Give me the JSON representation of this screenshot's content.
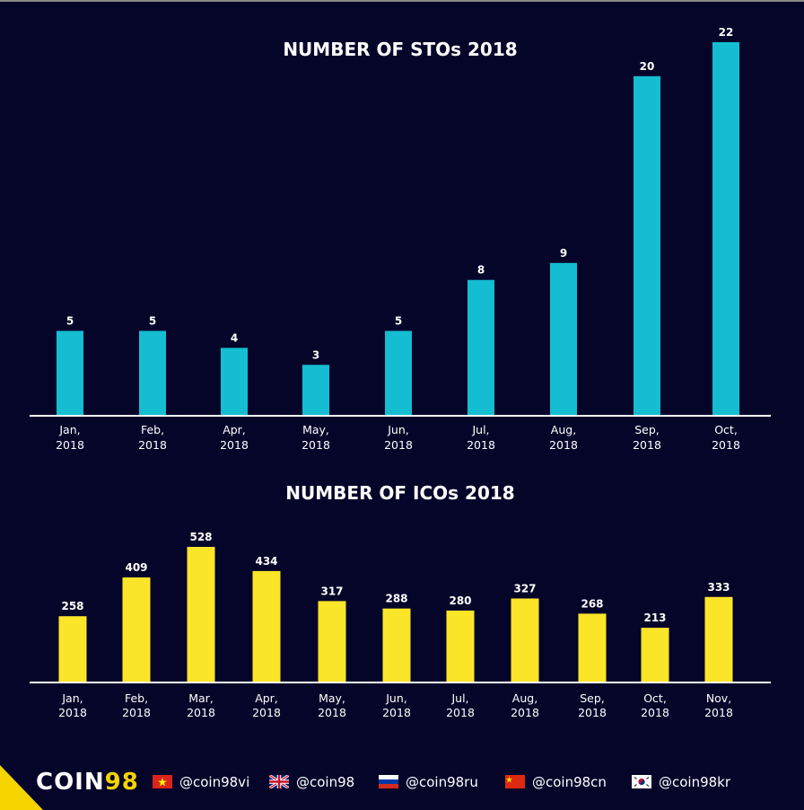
{
  "chart_data": [
    {
      "type": "bar",
      "title": "NUMBER OF STOs 2018",
      "categories": [
        [
          "Jan,",
          "2018"
        ],
        [
          "Feb,",
          "2018"
        ],
        [
          "Apr,",
          "2018"
        ],
        [
          "May,",
          "2018"
        ],
        [
          "Jun,",
          "2018"
        ],
        [
          "Jul,",
          "2018"
        ],
        [
          "Aug,",
          "2018"
        ],
        [
          "Sep,",
          "2018"
        ],
        [
          "Oct,",
          "2018"
        ]
      ],
      "values": [
        5,
        5,
        4,
        3,
        5,
        8,
        9,
        20,
        22
      ],
      "color": "#14bdd1",
      "grid": false
    },
    {
      "type": "bar",
      "title": "NUMBER OF ICOs 2018",
      "categories": [
        [
          "Jan,",
          "2018"
        ],
        [
          "Feb,",
          "2018"
        ],
        [
          "Mar,",
          "2018"
        ],
        [
          "Apr,",
          "2018"
        ],
        [
          "May,",
          "2018"
        ],
        [
          "Jun,",
          "2018"
        ],
        [
          "Jul,",
          "2018"
        ],
        [
          "Aug,",
          "2018"
        ],
        [
          "Sep,",
          "2018"
        ],
        [
          "Oct,",
          "2018"
        ],
        [
          "Nov,",
          "2018"
        ]
      ],
      "values": [
        258,
        409,
        528,
        434,
        317,
        288,
        280,
        327,
        268,
        213,
        333
      ],
      "color": "#fbe529",
      "grid": false
    }
  ],
  "colors": {
    "background": "#05052a",
    "accent": "#f5d400",
    "axis": "#ffffff"
  },
  "footer": {
    "logo": {
      "part1": "COIN",
      "part2": "98"
    },
    "socials": [
      {
        "flag": "vietnam-flag",
        "handle": "@coin98vi"
      },
      {
        "flag": "uk-flag",
        "handle": "@coin98"
      },
      {
        "flag": "russia-flag",
        "handle": "@coin98ru"
      },
      {
        "flag": "china-flag",
        "handle": "@coin98cn"
      },
      {
        "flag": "korea-flag",
        "handle": "@coin98kr"
      }
    ]
  }
}
